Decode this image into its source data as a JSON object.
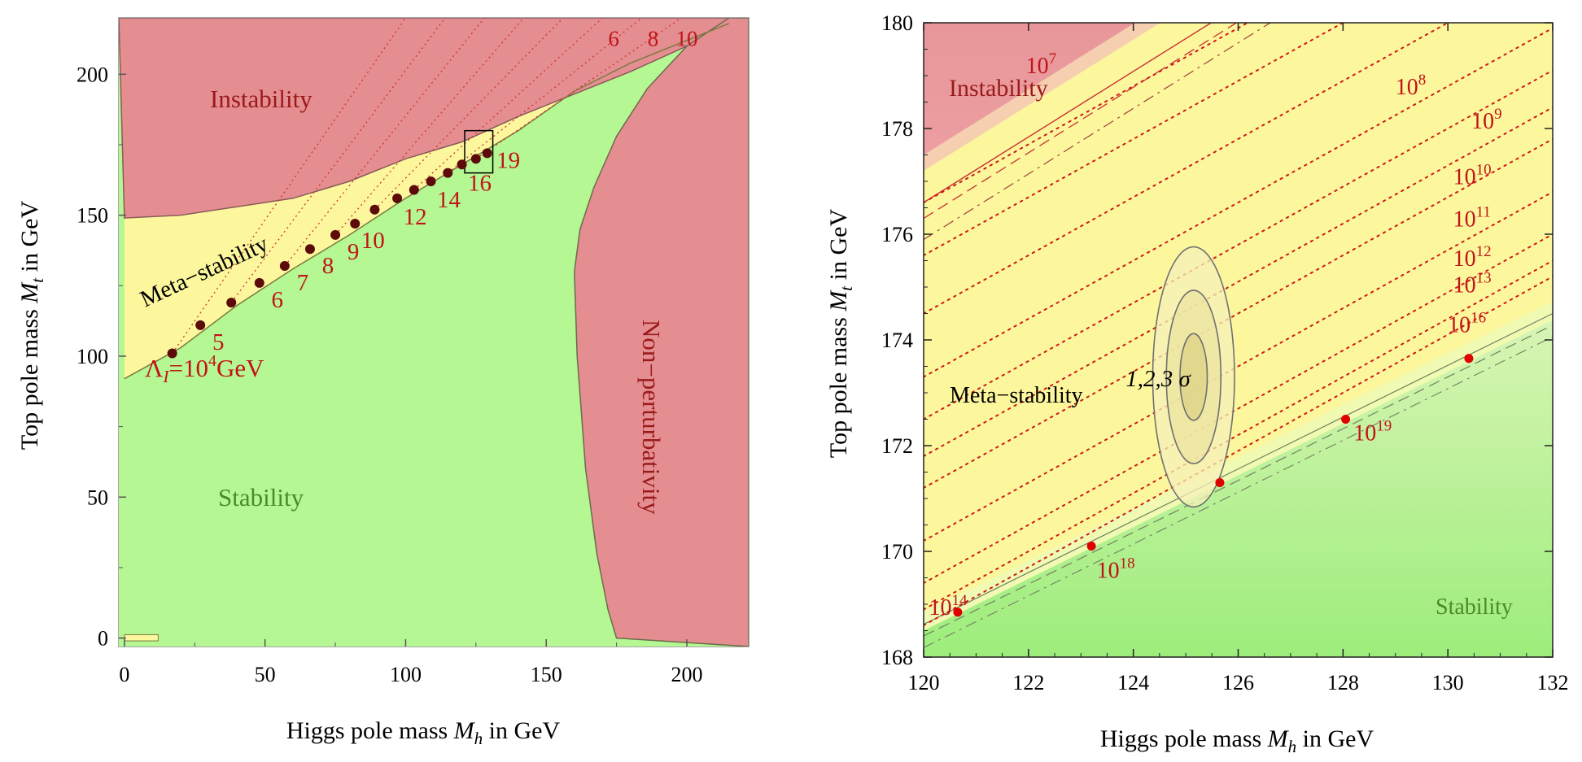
{
  "chart_data": [
    {
      "type": "area",
      "title": "",
      "xlabel": {
        "prefix": "Higgs pole mass ",
        "var": "M",
        "sub": "h",
        "suffix": " in GeV"
      },
      "ylabel": {
        "prefix": "Top pole mass ",
        "var": "M",
        "sub": "t",
        "suffix": " in GeV"
      },
      "xlim": [
        -2,
        222
      ],
      "ylim": [
        -3,
        220
      ],
      "xticks": [
        "0",
        "50",
        "100",
        "150",
        "200"
      ],
      "yticks": [
        "0",
        "50",
        "100",
        "150",
        "200"
      ],
      "regions": {
        "instability": "Instability",
        "metastability": "Meta−stability",
        "stability": "Stability",
        "nonperturbativity": "Non−perturbativity"
      },
      "instability_boundary": {
        "x": [
          0,
          20,
          40,
          60,
          80,
          100,
          120,
          140,
          160,
          180,
          200,
          215
        ],
        "y": [
          149,
          150,
          153,
          156,
          162,
          170,
          176,
          185,
          193,
          201,
          210,
          218
        ]
      },
      "stability_boundary": {
        "x": [
          0,
          20,
          40,
          60,
          80,
          100,
          120,
          140,
          160,
          180,
          200,
          215
        ],
        "y": [
          92,
          103,
          118,
          131,
          143,
          156,
          168,
          180,
          194,
          204,
          212,
          218
        ]
      },
      "nonpert_boundary": {
        "x": [
          175,
          172,
          168,
          164,
          161,
          160,
          162,
          167,
          175,
          186,
          200,
          215
        ],
        "y": [
          0,
          10,
          30,
          60,
          100,
          130,
          145,
          160,
          178,
          195,
          210,
          220
        ]
      },
      "lambda_points": {
        "x": [
          17,
          27,
          38,
          48,
          57,
          66,
          75,
          82,
          89,
          97,
          103,
          109,
          115,
          120,
          125,
          129
        ],
        "y": [
          101,
          111,
          119,
          126,
          132,
          138,
          143,
          147,
          152,
          156,
          159,
          162,
          165,
          168,
          170,
          172
        ],
        "labels": [
          "5",
          "6",
          "7",
          "8",
          "9",
          "10",
          "12",
          "14",
          "16",
          "19"
        ]
      },
      "lambda_first_label": {
        "pre": "Λ",
        "sub": "I",
        "eq": "=10",
        "exp": "4",
        "unit": "GeV"
      },
      "top_labels": [
        "6",
        "8",
        "10"
      ],
      "inset_box": {
        "x": [
          121,
          131
        ],
        "y": [
          165,
          180
        ]
      }
    },
    {
      "type": "area",
      "title": "",
      "xlabel": {
        "prefix": "Higgs pole mass ",
        "var": "M",
        "sub": "h",
        "suffix": " in GeV"
      },
      "ylabel": {
        "prefix": "Top pole mass ",
        "var": "M",
        "sub": "t",
        "suffix": " in GeV"
      },
      "xlim": [
        120,
        132
      ],
      "ylim": [
        168,
        180
      ],
      "xticks": [
        "120",
        "122",
        "124",
        "126",
        "128",
        "130",
        "132"
      ],
      "yticks": [
        "168",
        "170",
        "172",
        "174",
        "176",
        "178",
        "180"
      ],
      "regions": {
        "instability": "Instability",
        "metastability": "Meta−stability",
        "stability": "Stability"
      },
      "instability_boundary": {
        "x0": 120,
        "y0": 176.6,
        "slope": 0.62
      },
      "stability_boundary": {
        "x0": 120,
        "y0": 168.5,
        "slope": 0.49
      },
      "best_fit": {
        "mh": 125.15,
        "mt": 173.3,
        "sigma_mh": 0.26,
        "sigma_mt": 0.82,
        "label": "1,2,3 σ"
      },
      "scale_lines": {
        "exponents": [
          "7",
          "8",
          "9",
          "10",
          "11",
          "12",
          "13",
          "14",
          "16",
          "18",
          "19"
        ],
        "intercepts_at_120": [
          176.6,
          175.6,
          174.5,
          173.3,
          172.5,
          171.8,
          171.2,
          170.2,
          169.4,
          168.9,
          168.6
        ],
        "slope": 0.55
      },
      "scale_points": {
        "x": [
          120.65,
          123.2,
          125.65,
          128.05,
          130.4
        ],
        "y": [
          168.85,
          170.1,
          171.3,
          172.5,
          173.65
        ],
        "labels": [
          "14",
          "18",
          "19"
        ]
      },
      "label_base": "10"
    }
  ]
}
